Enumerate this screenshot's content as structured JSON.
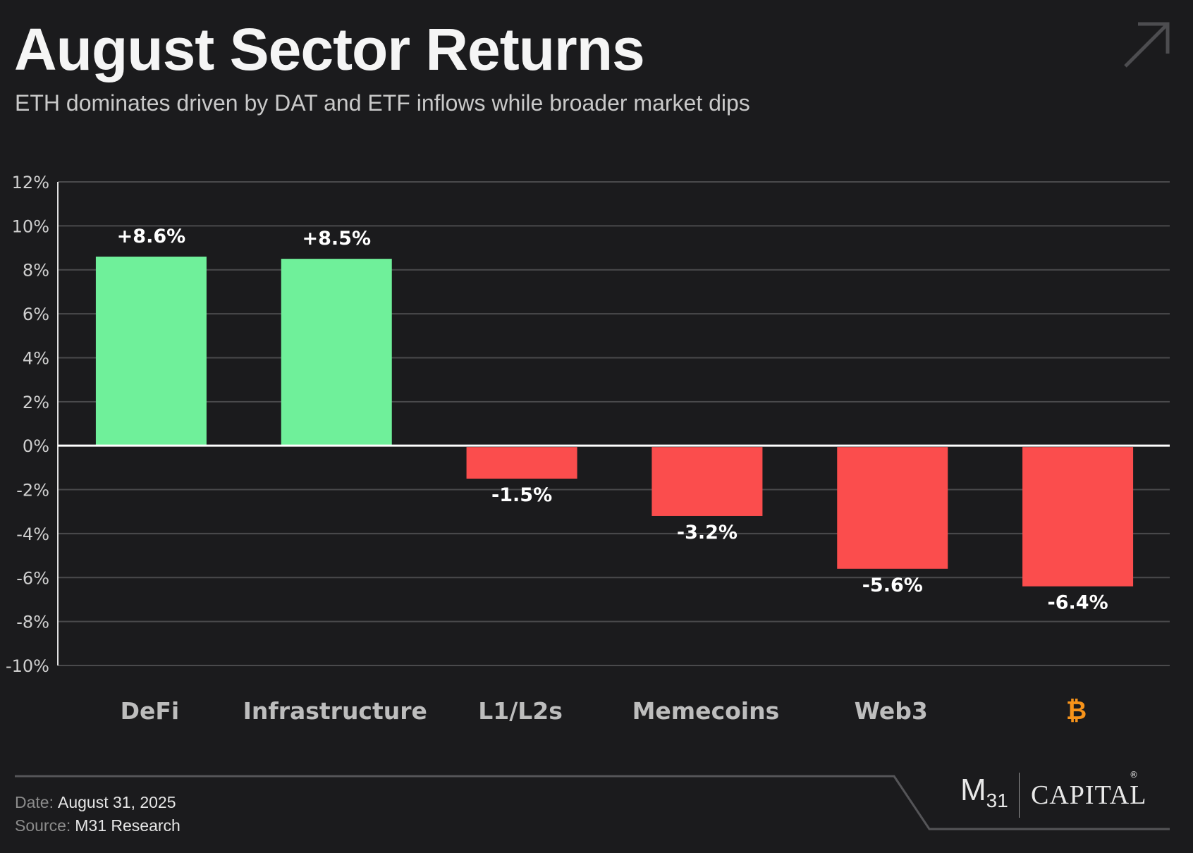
{
  "header": {
    "title": "August Sector Returns",
    "subtitle": "ETH dominates driven by DAT and ETF inflows while broader market dips"
  },
  "colors": {
    "positive": "#6ff09a",
    "negative": "#fb4d4d",
    "bitcoin": "#f7931a",
    "grid": "#4a4a4c",
    "zero_line": "#ffffff"
  },
  "chart_data": {
    "type": "bar",
    "categories": [
      "DeFi",
      "Infrastructure",
      "L1/L2s",
      "Memecoins",
      "Web3",
      "₿"
    ],
    "category_icons": [
      null,
      null,
      null,
      null,
      null,
      "bitcoin-icon"
    ],
    "values": [
      8.6,
      8.5,
      -1.5,
      -3.2,
      -5.6,
      -6.4
    ],
    "labels": [
      "+8.6%",
      "+8.5%",
      "-1.5%",
      "-3.2%",
      "-5.6%",
      "-6.4%"
    ],
    "ylim": [
      -10,
      12
    ],
    "yticks": [
      12,
      10,
      8,
      6,
      4,
      2,
      0,
      -2,
      -4,
      -6,
      -8,
      -10
    ],
    "ytick_labels": [
      "12%",
      "10%",
      "8%",
      "6%",
      "4%",
      "2%",
      "0%",
      "-2%",
      "-4%",
      "-6%",
      "-8%",
      "-10%"
    ],
    "title": "August Sector Returns",
    "xlabel": "",
    "ylabel": "",
    "grid": true
  },
  "footer": {
    "date_label": "Date:",
    "date_value": "August 31, 2025",
    "source_label": "Source:",
    "source_value": "M31 Research",
    "brand_m": "M",
    "brand_sub": "31",
    "brand_capital": "CAPITAL",
    "brand_reg": "®"
  }
}
